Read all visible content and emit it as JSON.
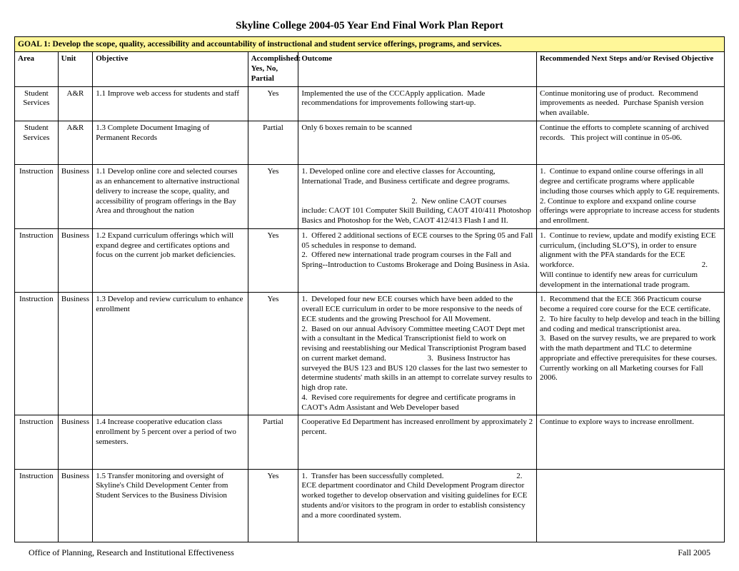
{
  "title": "Skyline College 2004-05 Year End Final Work Plan Report",
  "goal": "GOAL 1:  Develop the scope, quality, accessibility and accountability of instructional and student service offerings, programs, and services.",
  "headers": {
    "area": "Area",
    "unit": "Unit",
    "objective": "Objective",
    "accomplished": "Accomplished: Yes, No, Partial",
    "outcome": "Outcome",
    "next": "Recommended Next Steps and/or Revised Objective"
  },
  "footer_left": "Office of Planning, Research and Institutional Effectiveness",
  "footer_right": "Fall 2005",
  "rows": [
    {
      "area": "Student Services",
      "unit": "A&R",
      "objective": "1.1 Improve web access for students and staff",
      "accomplished": "Yes",
      "outcome": "Implemented the use of the CCCApply application.  Made recommendations for improvements following start-up.",
      "next": "Continue monitoring use of product.  Recommend improvements as needed.  Purchase Spanish version when available.",
      "blank": false
    },
    {
      "area": "Student Services",
      "unit": "A&R",
      "objective": "1.3 Complete Document Imaging of Permanent Records",
      "accomplished": "Partial",
      "outcome": "Only 6 boxes remain to be scanned",
      "next": "Continue the efforts to complete scanning of archived records.   This project will continue in 05-06.",
      "blank": true
    },
    {
      "area": "Instruction",
      "unit": "Business",
      "objective": "1.1 Develop online core and selected courses as an enhancement to alternative instructional delivery to increase the scope, quality, and accessibility of program offerings in the Bay Area and throughout the nation",
      "accomplished": "Yes",
      "outcome": "1. Developed online core and elective classes for Accounting, International Trade, and Business certificate and degree programs.\n\n                                                        2.  New online CAOT courses include: CAOT 101 Computer Skill Building, CAOT 410/411 Photoshop Basics and Photoshop for the Web, CAOT 412/413 Flash I and II.",
      "next": "1.  Continue to expand online course offerings in all degree and certificate programs where applicable including those courses which apply to GE requirements.                                                                    2. Continue to explore and exxpand online course offerings were appropriate to increase access for students and enrollment.",
      "blank": false
    },
    {
      "area": "Instruction",
      "unit": "Business",
      "objective": "1.2 Expand curriculum offerings which will expand degree and certificates options and focus on the current job market deficiencies.",
      "accomplished": "Yes",
      "outcome": "1.  Offered 2 additional sections of ECE courses to the Spring 05 and Fall 05 schedules in response to demand.                                                                                                                       2.  Offered new international trade program courses in the Fall and Spring--Introduction to Customs Brokerage and Doing Business in Asia.",
      "next": "1.  Continue to review, update and modify existing ECE curriculum, (including SLO\"S), in order to ensure alignment with the PFA standards for the ECE workforce.                                                                 2.  Will continue to identify new areas for curriculum development in the international trade program.",
      "blank": false
    },
    {
      "area": "Instruction",
      "unit": "Business",
      "objective": "1.3 Develop and review curriculum to enhance enrollment",
      "accomplished": "Yes",
      "outcome": "1.  Developed four new ECE courses which have been added to the overall ECE curriculum in order to be more responsive to the needs of ECE students and the growing Preschool for All Movement.                                                          2.  Based on our annual Advisory Committee meeting CAOT Dept met with a consultant in the Medical Transcriptionist field to work on revising and reestablishing our Medical Transcriptionist Program based on current market demand.                     3.  Business Instructor has surveyed the BUS 123 and BUS 120 classes for the last two semester to determine students' math skills in an attempt to correlate survey results to high drop rate.                                                                                               4.  Revised core requirements for degree and certificate programs in CAOT's Adm Assistant and Web Developer based",
      "next": "1.  Recommend that the ECE 366 Practicum course become a required core course for the ECE certificate.                                          2.  To hire faculty to help develop and teach in the billing and coding and medical transcriptionist area.                                             3.  Based on the survey results, we are prepared to work with the math department and TLC to determine  appropriate and effective prerequisites for these courses.                         Currently working on all Marketing courses for Fall 2006.",
      "blank": false
    },
    {
      "area": "Instruction",
      "unit": "Business",
      "objective": "1.4 Increase cooperative education class enrollment by 5 percent over a period of two semesters.",
      "accomplished": "Partial",
      "outcome": "Cooperative Ed Department has increased enrollment by approximately 2 percent.",
      "next": "Continue to explore ways to increase enrollment.",
      "blank": true
    },
    {
      "area": "Instruction",
      "unit": "Business",
      "objective": "1.5 Transfer monitoring and oversight of Skyline's Child Development Center from Student Services to the Business Division",
      "accomplished": "Yes",
      "outcome": "1.  Transfer has been successfully completed.                                     2.  ECE department coordinator and Child Development Program director worked together to develop observation and visiting guidelines for ECE students and/or visitors to the program in order to establish consistency and a more coordinated system.",
      "next": "",
      "blank": true
    }
  ]
}
